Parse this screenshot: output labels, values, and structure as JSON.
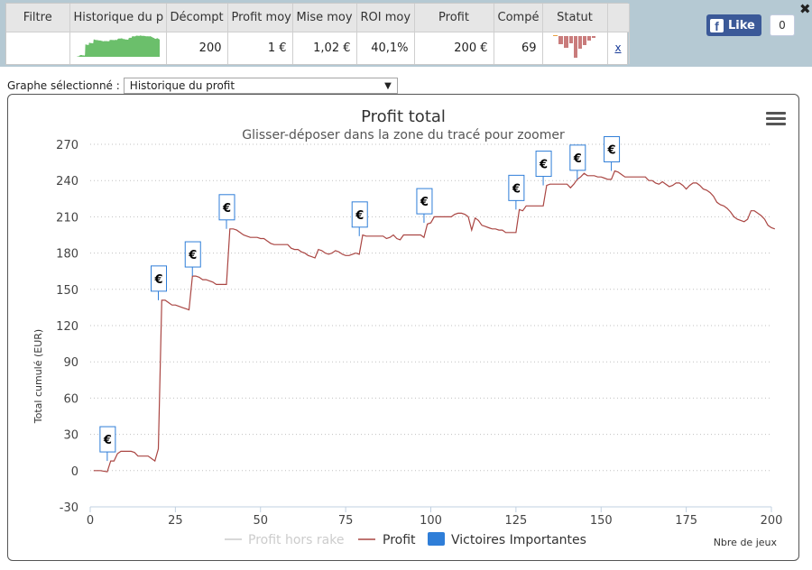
{
  "stats_table": {
    "headers": [
      "Filtre",
      "Historique du p",
      "Décompt",
      "Profit moy",
      "Mise moy",
      "ROI moy",
      "Profit",
      "Compé",
      "Statut",
      ""
    ],
    "row": {
      "filter": "",
      "decompte": "200",
      "profit_moyen": "1 €",
      "mise_moyenne": "1,02 €",
      "roi_moyen": "40,1%",
      "profit": "200 €",
      "competitions": "69",
      "close": "x"
    }
  },
  "facebook": {
    "like_label": "Like",
    "like_count": "0",
    "dismiss": "✖"
  },
  "graph_selector": {
    "label": "Graphe sélectionné :",
    "selected": "Historique du profit"
  },
  "colors": {
    "profit_line": "#aa4643",
    "rake_line": "#cccccc",
    "marker": "#2f7ed8",
    "grid": "#c0c0c0",
    "sparkline": "#6bbf6b",
    "status_bars": "#c97c7c"
  },
  "chart_data": {
    "type": "line",
    "title": "Profit total",
    "subtitle": "Glisser-déposer dans la zone du tracé pour zoomer",
    "xlabel": "Nbre de jeux",
    "ylabel": "Total cumulé (EUR)",
    "xlim": [
      0,
      200
    ],
    "ylim": [
      -30,
      270
    ],
    "x_ticks": [
      0,
      25,
      50,
      75,
      100,
      125,
      150,
      175,
      200
    ],
    "y_ticks": [
      -30,
      0,
      30,
      60,
      90,
      120,
      150,
      180,
      210,
      240,
      270
    ],
    "grid": true,
    "legend_position": "bottom",
    "series": [
      {
        "name": "Profit hors rake",
        "values": []
      },
      {
        "name": "Profit",
        "points": [
          [
            1,
            0
          ],
          [
            3,
            0
          ],
          [
            5,
            -1
          ],
          [
            6,
            8
          ],
          [
            7,
            8
          ],
          [
            8,
            14
          ],
          [
            9,
            16
          ],
          [
            10,
            16
          ],
          [
            11,
            16
          ],
          [
            12,
            16
          ],
          [
            13,
            15
          ],
          [
            14,
            12
          ],
          [
            15,
            12
          ],
          [
            16,
            12
          ],
          [
            17,
            12
          ],
          [
            18,
            10
          ],
          [
            19,
            8
          ],
          [
            20,
            18
          ],
          [
            21,
            141
          ],
          [
            22,
            141
          ],
          [
            23,
            139
          ],
          [
            24,
            137
          ],
          [
            25,
            137
          ],
          [
            26,
            136
          ],
          [
            27,
            135
          ],
          [
            28,
            134
          ],
          [
            29,
            133
          ],
          [
            30,
            161
          ],
          [
            31,
            161
          ],
          [
            32,
            160
          ],
          [
            33,
            158
          ],
          [
            34,
            158
          ],
          [
            35,
            157
          ],
          [
            36,
            156
          ],
          [
            37,
            154
          ],
          [
            38,
            154
          ],
          [
            39,
            154
          ],
          [
            40,
            154
          ],
          [
            41,
            200
          ],
          [
            42,
            200
          ],
          [
            43,
            199
          ],
          [
            44,
            197
          ],
          [
            45,
            195
          ],
          [
            46,
            194
          ],
          [
            47,
            193
          ],
          [
            48,
            193
          ],
          [
            49,
            193
          ],
          [
            50,
            192
          ],
          [
            51,
            192
          ],
          [
            52,
            190
          ],
          [
            53,
            188
          ],
          [
            54,
            187
          ],
          [
            55,
            187
          ],
          [
            56,
            187
          ],
          [
            57,
            187
          ],
          [
            58,
            187
          ],
          [
            59,
            184
          ],
          [
            60,
            183
          ],
          [
            61,
            183
          ],
          [
            62,
            181
          ],
          [
            63,
            180
          ],
          [
            64,
            178
          ],
          [
            65,
            177
          ],
          [
            66,
            176
          ],
          [
            67,
            183
          ],
          [
            68,
            182
          ],
          [
            69,
            180
          ],
          [
            70,
            179
          ],
          [
            71,
            180
          ],
          [
            72,
            182
          ],
          [
            73,
            181
          ],
          [
            74,
            179
          ],
          [
            75,
            178
          ],
          [
            76,
            178
          ],
          [
            77,
            179
          ],
          [
            78,
            180
          ],
          [
            79,
            179
          ],
          [
            80,
            195
          ],
          [
            81,
            194
          ],
          [
            82,
            194
          ],
          [
            83,
            194
          ],
          [
            84,
            194
          ],
          [
            85,
            194
          ],
          [
            86,
            194
          ],
          [
            87,
            192
          ],
          [
            88,
            193
          ],
          [
            89,
            195
          ],
          [
            90,
            192
          ],
          [
            91,
            191
          ],
          [
            92,
            195
          ],
          [
            93,
            195
          ],
          [
            94,
            195
          ],
          [
            95,
            195
          ],
          [
            96,
            195
          ],
          [
            97,
            195
          ],
          [
            98,
            193
          ],
          [
            99,
            204
          ],
          [
            100,
            205
          ],
          [
            101,
            210
          ],
          [
            102,
            210
          ],
          [
            103,
            210
          ],
          [
            104,
            210
          ],
          [
            105,
            210
          ],
          [
            106,
            210
          ],
          [
            107,
            212
          ],
          [
            108,
            213
          ],
          [
            109,
            213
          ],
          [
            110,
            212
          ],
          [
            111,
            210
          ],
          [
            112,
            199
          ],
          [
            113,
            209
          ],
          [
            114,
            207
          ],
          [
            115,
            203
          ],
          [
            116,
            202
          ],
          [
            117,
            201
          ],
          [
            118,
            200
          ],
          [
            119,
            200
          ],
          [
            120,
            199
          ],
          [
            121,
            199
          ],
          [
            122,
            197
          ],
          [
            123,
            197
          ],
          [
            124,
            197
          ],
          [
            125,
            197
          ],
          [
            126,
            216
          ],
          [
            127,
            215
          ],
          [
            128,
            219
          ],
          [
            129,
            219
          ],
          [
            130,
            219
          ],
          [
            131,
            219
          ],
          [
            132,
            219
          ],
          [
            133,
            219
          ],
          [
            134,
            236
          ],
          [
            135,
            237
          ],
          [
            136,
            237
          ],
          [
            137,
            237
          ],
          [
            138,
            237
          ],
          [
            139,
            237
          ],
          [
            140,
            237
          ],
          [
            141,
            234
          ],
          [
            142,
            237
          ],
          [
            143,
            241
          ],
          [
            144,
            243
          ],
          [
            145,
            246
          ],
          [
            146,
            244
          ],
          [
            147,
            244
          ],
          [
            148,
            244
          ],
          [
            149,
            243
          ],
          [
            150,
            243
          ],
          [
            151,
            242
          ],
          [
            152,
            241
          ],
          [
            153,
            241
          ],
          [
            154,
            248
          ],
          [
            155,
            247
          ],
          [
            156,
            245
          ],
          [
            157,
            243
          ],
          [
            158,
            243
          ],
          [
            159,
            243
          ],
          [
            160,
            243
          ],
          [
            161,
            243
          ],
          [
            162,
            243
          ],
          [
            163,
            243
          ],
          [
            164,
            240
          ],
          [
            165,
            240
          ],
          [
            166,
            238
          ],
          [
            167,
            237
          ],
          [
            168,
            239
          ],
          [
            169,
            237
          ],
          [
            170,
            235
          ],
          [
            171,
            236
          ],
          [
            172,
            238
          ],
          [
            173,
            238
          ],
          [
            174,
            236
          ],
          [
            175,
            233
          ],
          [
            176,
            236
          ],
          [
            177,
            238
          ],
          [
            178,
            238
          ],
          [
            179,
            236
          ],
          [
            180,
            233
          ],
          [
            181,
            232
          ],
          [
            182,
            230
          ],
          [
            183,
            227
          ],
          [
            184,
            222
          ],
          [
            185,
            220
          ],
          [
            186,
            219
          ],
          [
            187,
            217
          ],
          [
            188,
            214
          ],
          [
            189,
            210
          ],
          [
            190,
            208
          ],
          [
            191,
            207
          ],
          [
            192,
            206
          ],
          [
            193,
            208
          ],
          [
            194,
            215
          ],
          [
            195,
            215
          ],
          [
            196,
            213
          ],
          [
            197,
            211
          ],
          [
            198,
            208
          ],
          [
            199,
            203
          ],
          [
            200,
            201
          ],
          [
            201,
            200
          ]
        ]
      },
      {
        "name": "Victoires Importantes",
        "marker_label": "€",
        "points": [
          [
            5,
            8
          ],
          [
            20,
            141
          ],
          [
            30,
            161
          ],
          [
            40,
            200
          ],
          [
            79,
            194
          ],
          [
            98,
            205
          ],
          [
            125,
            216
          ],
          [
            133,
            236
          ],
          [
            143,
            241
          ],
          [
            153,
            248
          ]
        ]
      }
    ]
  }
}
